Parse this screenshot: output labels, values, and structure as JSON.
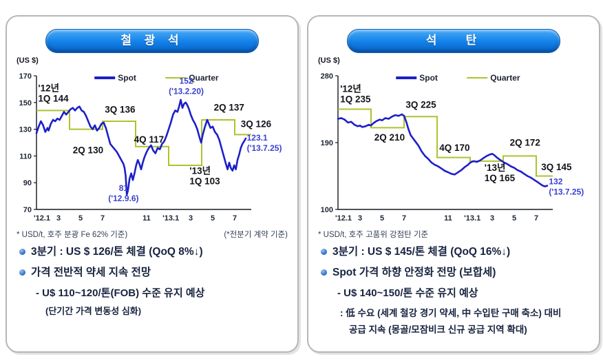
{
  "colors": {
    "spot": "#1c1fc9",
    "quarter": "#aec22e",
    "callout_blue": "#3a41d0",
    "annotation_black": "#101319",
    "axis": "#14181f",
    "text_dark": "#17233f",
    "panel_border": "#b3b6ba",
    "pill_blue": "#0f7ce6"
  },
  "panels": [
    {
      "title": "철 광 석",
      "unit": "(US $)",
      "footnote_left": "* USD/t, 호주 분광 Fe 62% 기준)",
      "footnote_right": "(*전분기 계약 기준)",
      "bullets": [
        {
          "style": "dot",
          "text": "3분기 : US $ 126/톤 체결 (QoQ 8%↓)"
        },
        {
          "style": "dot",
          "text": "가격 전반적 약세 지속 전망"
        },
        {
          "style": "dash",
          "text": "- U$ 110~120/톤(FOB) 수준 유지 예상"
        },
        {
          "style": "note",
          "text": "(단기간 가격 변동성 심화)"
        }
      ]
    },
    {
      "title": "석   탄",
      "unit": "(US $)",
      "footnote_left": "* USD/t, 호주 고품위 강점탄 기준",
      "footnote_right": "",
      "bullets": [
        {
          "style": "dot",
          "text": "3분기 : US $ 145/톤 체결 (QoQ 16%↓)"
        },
        {
          "style": "dot",
          "text": "Spot 가격 하향 안정화 전망 (보합세)"
        },
        {
          "style": "dash",
          "text": "- U$ 140~150/톤 수준 유지 예상"
        },
        {
          "style": "note2",
          "text": ": 低 수요 (세계 철강 경기 약세, 中 수입탄 구매 축소) 대비"
        },
        {
          "style": "note3",
          "text": "공급 지속 (몽골/모잠비크 신규 공급 지역 확대)"
        }
      ]
    }
  ],
  "chart_data": [
    {
      "type": "line",
      "title": "철광석",
      "unit_label": "(US $)",
      "ylim": [
        70,
        170
      ],
      "yticks": [
        170,
        150,
        130,
        110,
        90,
        70
      ],
      "months_max": 19.5,
      "xticks": [
        {
          "m": 0.5,
          "label": "'12.1"
        },
        {
          "m": 2,
          "label": "3"
        },
        {
          "m": 4,
          "label": "5"
        },
        {
          "m": 6,
          "label": "7"
        },
        {
          "m": 10,
          "label": "11"
        },
        {
          "m": 12.2,
          "label": "'13.1"
        },
        {
          "m": 14,
          "label": "3"
        },
        {
          "m": 16,
          "label": "5"
        },
        {
          "m": 18,
          "label": "7"
        }
      ],
      "legend": [
        {
          "name": "Spot"
        },
        {
          "name": "Quarter"
        }
      ],
      "quarter_steps": [
        {
          "quarter": "1Q 2012",
          "from": 0,
          "to": 3,
          "value": 144
        },
        {
          "quarter": "2Q 2012",
          "from": 3,
          "to": 6,
          "value": 130
        },
        {
          "quarter": "3Q 2012",
          "from": 6,
          "to": 9,
          "value": 136
        },
        {
          "quarter": "4Q 2012",
          "from": 9,
          "to": 12,
          "value": 117
        },
        {
          "quarter": "1Q 2013",
          "from": 12,
          "to": 15,
          "value": 103
        },
        {
          "quarter": "2Q 2013",
          "from": 15,
          "to": 18,
          "value": 137
        },
        {
          "quarter": "3Q 2013",
          "from": 18,
          "to": 19.5,
          "value": 126
        }
      ],
      "spot": [
        [
          0,
          127
        ],
        [
          0.2,
          132
        ],
        [
          0.4,
          136
        ],
        [
          0.6,
          133
        ],
        [
          0.8,
          128
        ],
        [
          1.0,
          131
        ],
        [
          1.1,
          129
        ],
        [
          1.3,
          134
        ],
        [
          1.5,
          137
        ],
        [
          1.7,
          136
        ],
        [
          1.9,
          138
        ],
        [
          2.1,
          137
        ],
        [
          2.3,
          140
        ],
        [
          2.5,
          143
        ],
        [
          2.7,
          141
        ],
        [
          2.9,
          143
        ],
        [
          3.1,
          145
        ],
        [
          3.3,
          146
        ],
        [
          3.5,
          144
        ],
        [
          3.7,
          146
        ],
        [
          3.9,
          147
        ],
        [
          4.1,
          144
        ],
        [
          4.3,
          143
        ],
        [
          4.5,
          140
        ],
        [
          4.7,
          136
        ],
        [
          4.9,
          132
        ],
        [
          5.1,
          130
        ],
        [
          5.3,
          133
        ],
        [
          5.5,
          129
        ],
        [
          5.7,
          131
        ],
        [
          5.9,
          134
        ],
        [
          6.1,
          135
        ],
        [
          6.3,
          131
        ],
        [
          6.5,
          125
        ],
        [
          6.7,
          119
        ],
        [
          6.9,
          117
        ],
        [
          7.1,
          115
        ],
        [
          7.3,
          113
        ],
        [
          7.5,
          110
        ],
        [
          7.7,
          107
        ],
        [
          7.9,
          104
        ],
        [
          8.0,
          101
        ],
        [
          8.1,
          95
        ],
        [
          8.2,
          81
        ],
        [
          8.3,
          84
        ],
        [
          8.45,
          93
        ],
        [
          8.6,
          97
        ],
        [
          8.75,
          92
        ],
        [
          8.9,
          97
        ],
        [
          9.05,
          103
        ],
        [
          9.2,
          107
        ],
        [
          9.35,
          104
        ],
        [
          9.5,
          100
        ],
        [
          9.65,
          105
        ],
        [
          9.8,
          109
        ],
        [
          10.0,
          113
        ],
        [
          10.2,
          116
        ],
        [
          10.4,
          118
        ],
        [
          10.6,
          114
        ],
        [
          10.8,
          112
        ],
        [
          11.0,
          116
        ],
        [
          11.2,
          115
        ],
        [
          11.4,
          119
        ],
        [
          11.6,
          121
        ],
        [
          11.8,
          125
        ],
        [
          12.0,
          130
        ],
        [
          12.2,
          135
        ],
        [
          12.4,
          141
        ],
        [
          12.6,
          144
        ],
        [
          12.8,
          143
        ],
        [
          12.95,
          147
        ],
        [
          13.1,
          152
        ],
        [
          13.25,
          146
        ],
        [
          13.4,
          149
        ],
        [
          13.55,
          150
        ],
        [
          13.7,
          148
        ],
        [
          13.85,
          145
        ],
        [
          14.0,
          141
        ],
        [
          14.2,
          137
        ],
        [
          14.4,
          134
        ],
        [
          14.6,
          130
        ],
        [
          14.8,
          124
        ],
        [
          14.95,
          120
        ],
        [
          15.1,
          126
        ],
        [
          15.3,
          132
        ],
        [
          15.5,
          137
        ],
        [
          15.65,
          134
        ],
        [
          15.8,
          131
        ],
        [
          16.0,
          132
        ],
        [
          16.2,
          128
        ],
        [
          16.4,
          126
        ],
        [
          16.6,
          122
        ],
        [
          16.8,
          116
        ],
        [
          17.0,
          110
        ],
        [
          17.2,
          104
        ],
        [
          17.35,
          100
        ],
        [
          17.5,
          105
        ],
        [
          17.65,
          101
        ],
        [
          17.8,
          99
        ],
        [
          17.95,
          103
        ],
        [
          18.1,
          100
        ],
        [
          18.25,
          107
        ],
        [
          18.4,
          111
        ],
        [
          18.55,
          116
        ],
        [
          18.7,
          119
        ],
        [
          18.85,
          121
        ],
        [
          19.0,
          123.1
        ]
      ],
      "annotations": [
        {
          "lines": [
            "'12년",
            "1Q 144"
          ],
          "m": 0.15,
          "v": 158.5,
          "anchor": "start",
          "color": "black",
          "size": 13.5
        },
        {
          "lines": [
            "2Q 130"
          ],
          "m": 3.3,
          "v": 112,
          "anchor": "start",
          "color": "black",
          "size": 13.5
        },
        {
          "lines": [
            "3Q 136"
          ],
          "m": 6.2,
          "v": 142.5,
          "anchor": "start",
          "color": "black",
          "size": 13.5
        },
        {
          "lines": [
            "4Q 117"
          ],
          "m": 8.85,
          "v": 120,
          "anchor": "start",
          "color": "black",
          "size": 13.5
        },
        {
          "lines": [
            "81",
            "('12.9.6)"
          ],
          "m": 7.9,
          "v": 84,
          "anchor": "middle",
          "color": "blue",
          "size": 12
        },
        {
          "lines": [
            "152",
            "('13.2.20)"
          ],
          "m": 13.6,
          "v": 164,
          "anchor": "middle",
          "color": "blue",
          "size": 12
        },
        {
          "lines": [
            "'13년",
            "1Q 103"
          ],
          "m": 13.9,
          "v": 96.5,
          "anchor": "start",
          "color": "black",
          "size": 13.5
        },
        {
          "lines": [
            "2Q 137"
          ],
          "m": 16.1,
          "v": 144,
          "anchor": "start",
          "color": "black",
          "size": 13.5
        },
        {
          "lines": [
            "3Q 126"
          ],
          "m": 18.55,
          "v": 131.5,
          "anchor": "start",
          "color": "black",
          "size": 13.5
        },
        {
          "lines": [
            "123.1",
            "('13.7.25)"
          ],
          "m": 19.1,
          "v": 121.5,
          "anchor": "start",
          "color": "blue",
          "size": 12
        }
      ]
    },
    {
      "type": "line",
      "title": "석탄",
      "unit_label": "(US $)",
      "ylim": [
        100,
        280
      ],
      "yticks": [
        280,
        190,
        100
      ],
      "months_max": 19.5,
      "xticks": [
        {
          "m": 0.5,
          "label": "'12.1"
        },
        {
          "m": 2,
          "label": "3"
        },
        {
          "m": 4,
          "label": "5"
        },
        {
          "m": 6,
          "label": "7"
        },
        {
          "m": 10,
          "label": "11"
        },
        {
          "m": 12.2,
          "label": "'13.1"
        },
        {
          "m": 14,
          "label": "3"
        },
        {
          "m": 16,
          "label": "5"
        },
        {
          "m": 18,
          "label": "7"
        }
      ],
      "legend": [
        {
          "name": "Spot"
        },
        {
          "name": "Quarter"
        }
      ],
      "quarter_steps": [
        {
          "quarter": "1Q 2012",
          "from": 0,
          "to": 3,
          "value": 235
        },
        {
          "quarter": "2Q 2012",
          "from": 3,
          "to": 6,
          "value": 210
        },
        {
          "quarter": "3Q 2012",
          "from": 6,
          "to": 9,
          "value": 225
        },
        {
          "quarter": "4Q 2012",
          "from": 9,
          "to": 12,
          "value": 170
        },
        {
          "quarter": "1Q 2013",
          "from": 12,
          "to": 15,
          "value": 165
        },
        {
          "quarter": "2Q 2013",
          "from": 15,
          "to": 18,
          "value": 172
        },
        {
          "quarter": "3Q 2013",
          "from": 18,
          "to": 19.5,
          "value": 145
        }
      ],
      "spot": [
        [
          0,
          222
        ],
        [
          0.3,
          223
        ],
        [
          0.6,
          221
        ],
        [
          0.9,
          217
        ],
        [
          1.2,
          218
        ],
        [
          1.5,
          214
        ],
        [
          1.8,
          212
        ],
        [
          2.0,
          213
        ],
        [
          2.2,
          211
        ],
        [
          2.5,
          212
        ],
        [
          2.8,
          214
        ],
        [
          3.0,
          213
        ],
        [
          3.2,
          216
        ],
        [
          3.5,
          219
        ],
        [
          3.8,
          221
        ],
        [
          4.0,
          220
        ],
        [
          4.3,
          223
        ],
        [
          4.6,
          222
        ],
        [
          4.9,
          225
        ],
        [
          5.2,
          227
        ],
        [
          5.5,
          226
        ],
        [
          5.8,
          228
        ],
        [
          6.0,
          226
        ],
        [
          6.2,
          218
        ],
        [
          6.4,
          208
        ],
        [
          6.6,
          200
        ],
        [
          6.8,
          196
        ],
        [
          7.0,
          192
        ],
        [
          7.3,
          186
        ],
        [
          7.6,
          178
        ],
        [
          7.9,
          172
        ],
        [
          8.2,
          168
        ],
        [
          8.5,
          163
        ],
        [
          8.8,
          160
        ],
        [
          9.1,
          158
        ],
        [
          9.4,
          155
        ],
        [
          9.7,
          152
        ],
        [
          10.0,
          150
        ],
        [
          10.3,
          148
        ],
        [
          10.6,
          147
        ],
        [
          10.9,
          150
        ],
        [
          11.2,
          153
        ],
        [
          11.5,
          157
        ],
        [
          11.8,
          160
        ],
        [
          12.0,
          163
        ],
        [
          12.3,
          165
        ],
        [
          12.6,
          164
        ],
        [
          12.9,
          166
        ],
        [
          13.2,
          169
        ],
        [
          13.5,
          172
        ],
        [
          13.8,
          174
        ],
        [
          14.0,
          175
        ],
        [
          14.2,
          173
        ],
        [
          14.5,
          169
        ],
        [
          14.8,
          166
        ],
        [
          15.1,
          163
        ],
        [
          15.4,
          161
        ],
        [
          15.7,
          158
        ],
        [
          16.0,
          156
        ],
        [
          16.3,
          153
        ],
        [
          16.6,
          151
        ],
        [
          16.9,
          148
        ],
        [
          17.2,
          145
        ],
        [
          17.5,
          143
        ],
        [
          17.8,
          140
        ],
        [
          18.1,
          137
        ],
        [
          18.4,
          134
        ],
        [
          18.6,
          132
        ],
        [
          18.8,
          131
        ],
        [
          19.0,
          132
        ]
      ],
      "annotations": [
        {
          "lines": [
            "'12년",
            "1Q 235"
          ],
          "m": 0.2,
          "v": 258,
          "anchor": "start",
          "color": "black",
          "size": 13.5
        },
        {
          "lines": [
            "2Q 210"
          ],
          "m": 3.3,
          "v": 193,
          "anchor": "start",
          "color": "black",
          "size": 13.5
        },
        {
          "lines": [
            "3Q 225"
          ],
          "m": 6.15,
          "v": 237,
          "anchor": "start",
          "color": "black",
          "size": 13.5
        },
        {
          "lines": [
            "4Q 170"
          ],
          "m": 9.2,
          "v": 179,
          "anchor": "start",
          "color": "black",
          "size": 13.5
        },
        {
          "lines": [
            "'13년",
            "1Q 165"
          ],
          "m": 13.3,
          "v": 152,
          "anchor": "start",
          "color": "black",
          "size": 13.5
        },
        {
          "lines": [
            "2Q 172"
          ],
          "m": 15.6,
          "v": 186,
          "anchor": "start",
          "color": "black",
          "size": 13.5
        },
        {
          "lines": [
            "3Q 145"
          ],
          "m": 18.45,
          "v": 153,
          "anchor": "start",
          "color": "black",
          "size": 13.5
        },
        {
          "lines": [
            "132",
            "('13.7.25)"
          ],
          "m": 19.15,
          "v": 134,
          "anchor": "start",
          "color": "blue",
          "size": 12
        }
      ]
    }
  ]
}
